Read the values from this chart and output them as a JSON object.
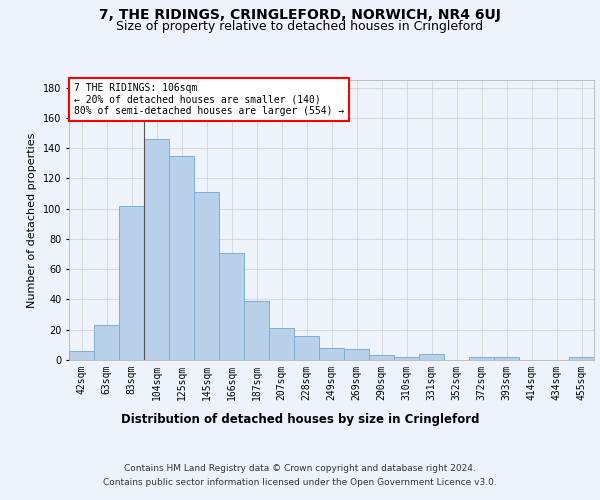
{
  "title": "7, THE RIDINGS, CRINGLEFORD, NORWICH, NR4 6UJ",
  "subtitle": "Size of property relative to detached houses in Cringleford",
  "xlabel": "Distribution of detached houses by size in Cringleford",
  "ylabel": "Number of detached properties",
  "categories": [
    "42sqm",
    "63sqm",
    "83sqm",
    "104sqm",
    "125sqm",
    "145sqm",
    "166sqm",
    "187sqm",
    "207sqm",
    "228sqm",
    "249sqm",
    "269sqm",
    "290sqm",
    "310sqm",
    "331sqm",
    "352sqm",
    "372sqm",
    "393sqm",
    "414sqm",
    "434sqm",
    "455sqm"
  ],
  "values": [
    6,
    23,
    102,
    146,
    135,
    111,
    71,
    39,
    21,
    16,
    8,
    7,
    3,
    2,
    4,
    0,
    2,
    2,
    0,
    0,
    2
  ],
  "bar_color": "#b8d0ea",
  "bar_edge_color": "#7aafd4",
  "background_color": "#eef2fb",
  "annotation_box_text": "7 THE RIDINGS: 106sqm\n← 20% of detached houses are smaller (140)\n80% of semi-detached houses are larger (554) →",
  "annotation_box_color": "#ffffff",
  "annotation_box_edge_color": "red",
  "vline_bin_index": 3,
  "ylim": [
    0,
    185
  ],
  "yticks": [
    0,
    20,
    40,
    60,
    80,
    100,
    120,
    140,
    160,
    180
  ],
  "footer_line1": "Contains HM Land Registry data © Crown copyright and database right 2024.",
  "footer_line2": "Contains public sector information licensed under the Open Government Licence v3.0.",
  "title_fontsize": 10,
  "subtitle_fontsize": 9,
  "xlabel_fontsize": 8.5,
  "ylabel_fontsize": 8,
  "tick_fontsize": 7,
  "footer_fontsize": 6.5,
  "ann_fontsize": 7
}
